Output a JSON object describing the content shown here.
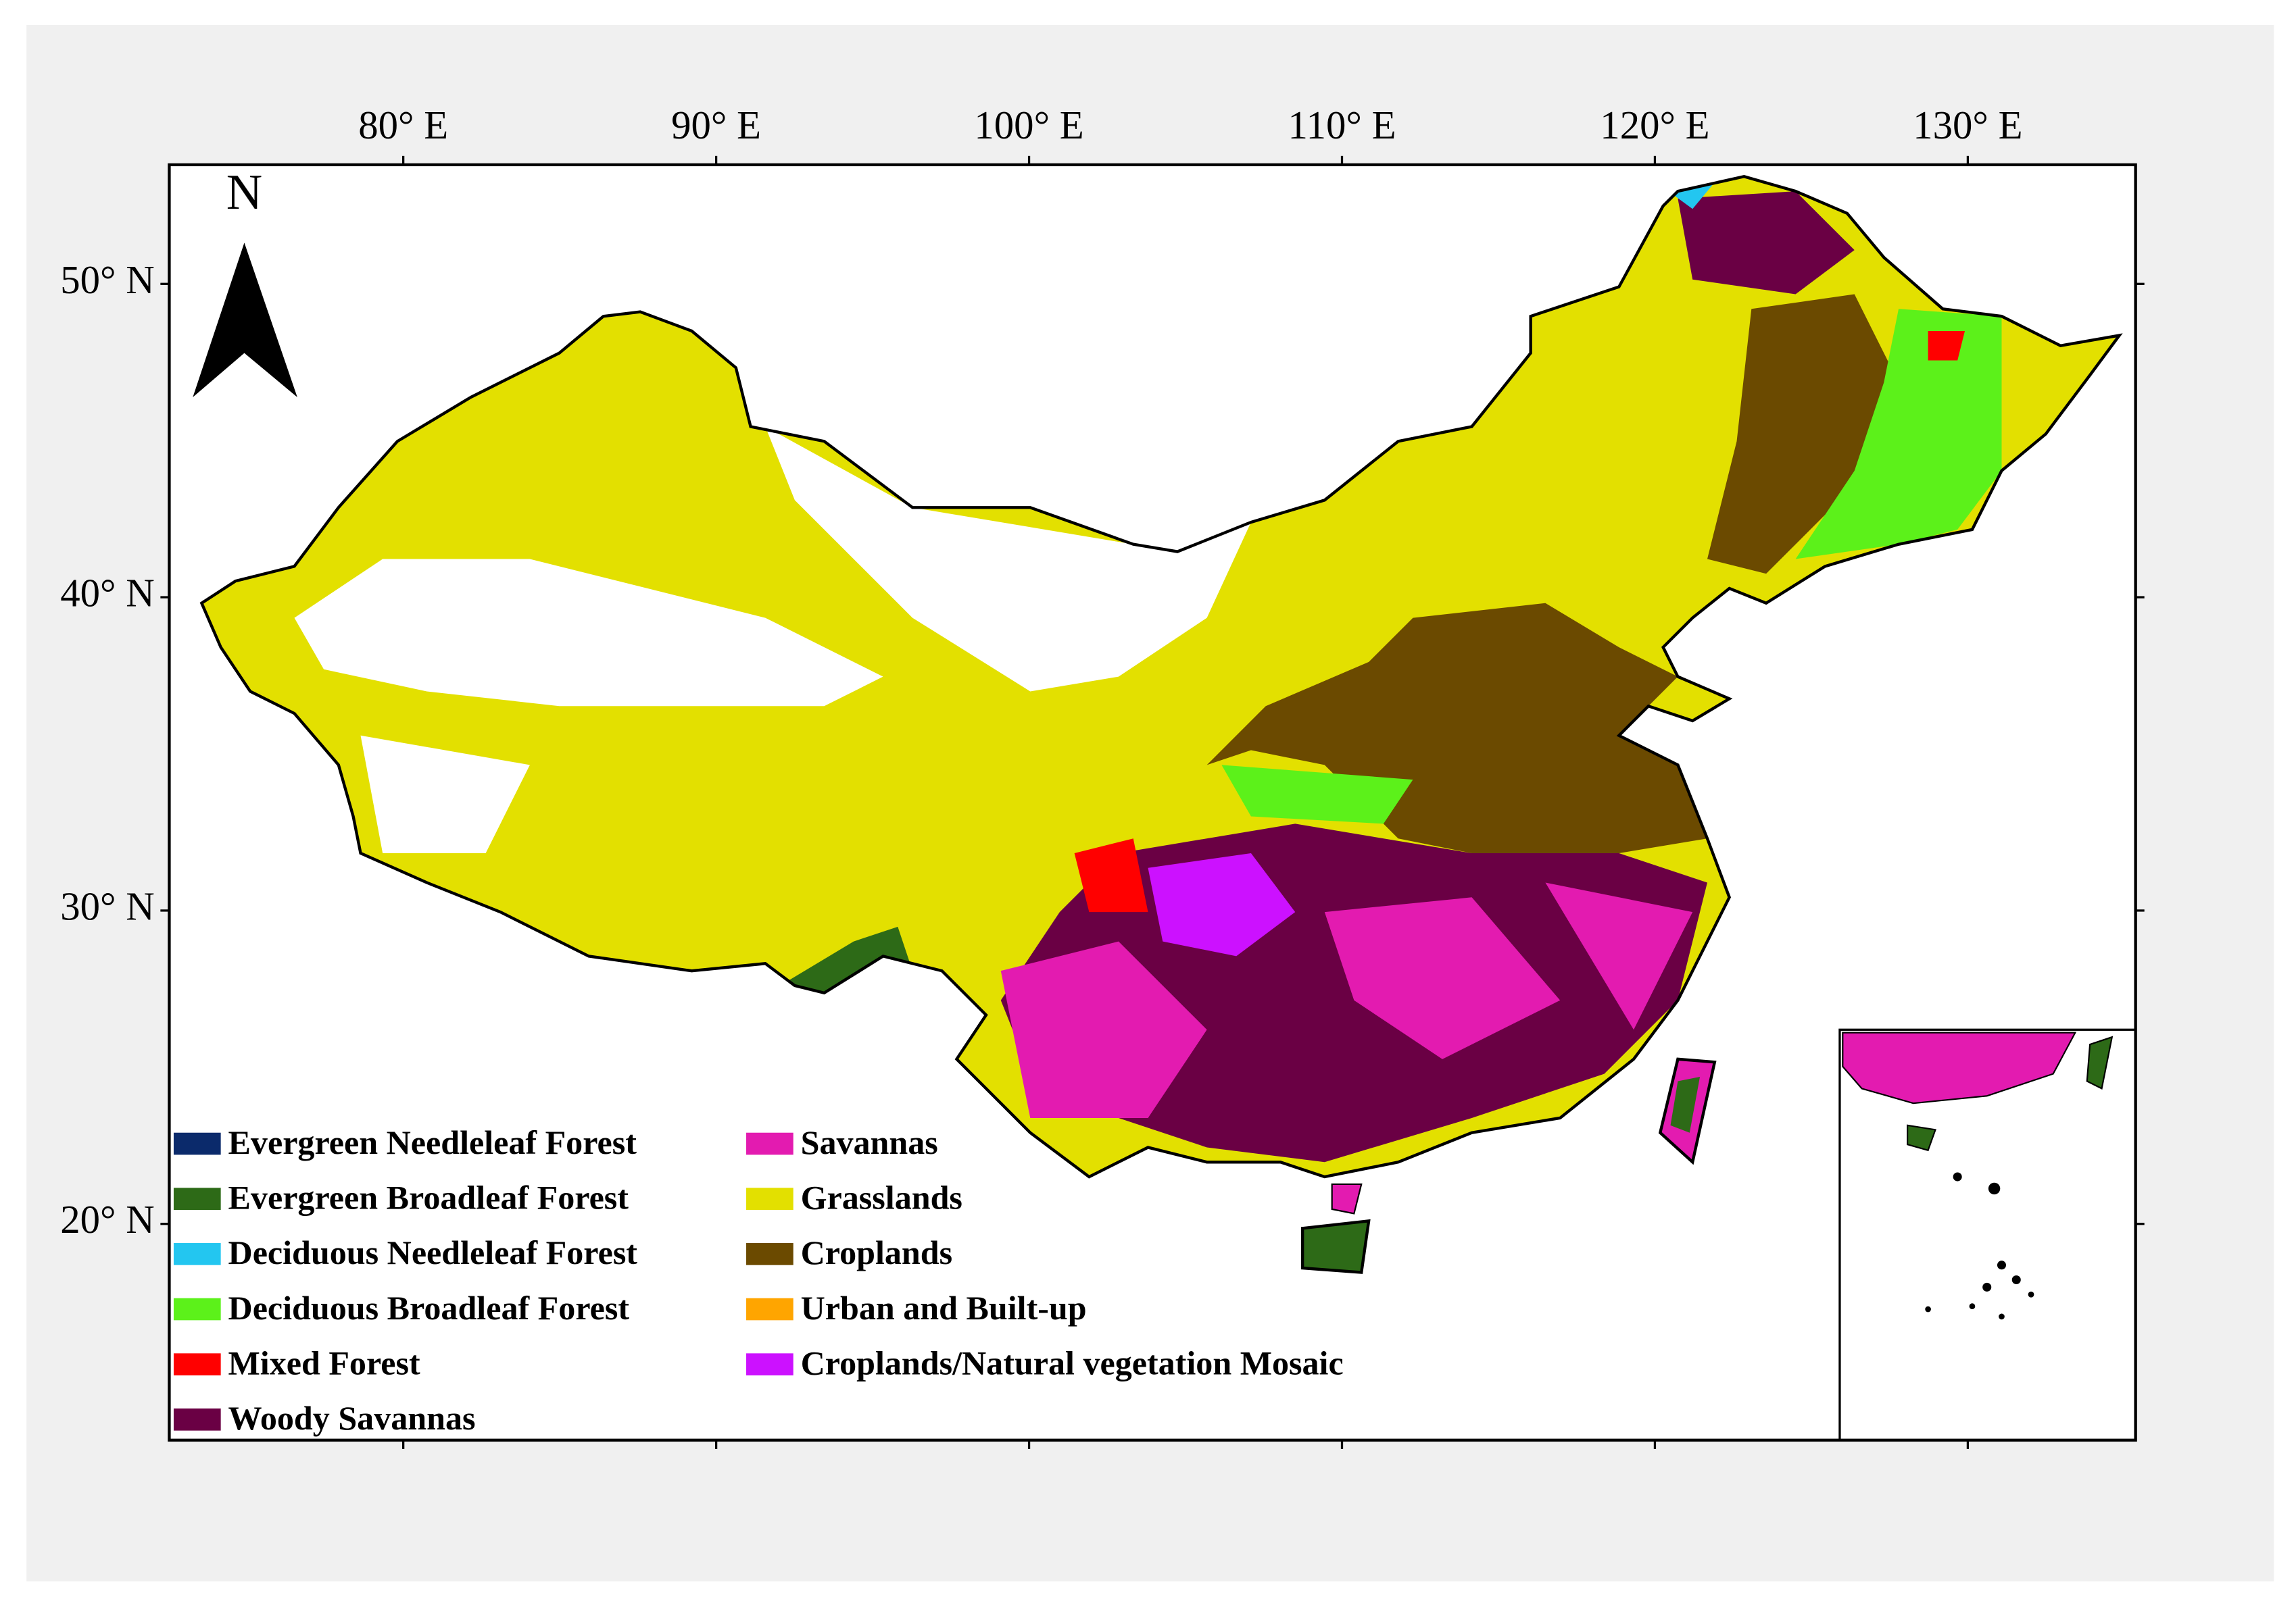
{
  "map": {
    "x_ticks": [
      {
        "value": 80,
        "label": "80° E"
      },
      {
        "value": 90,
        "label": "90° E"
      },
      {
        "value": 100,
        "label": "100° E"
      },
      {
        "value": 110,
        "label": "110° E"
      },
      {
        "value": 120,
        "label": "120° E"
      },
      {
        "value": 130,
        "label": "130° E"
      }
    ],
    "y_ticks": [
      {
        "value": 50,
        "label": "50° N"
      },
      {
        "value": 40,
        "label": "40° N"
      },
      {
        "value": 30,
        "label": "30° N"
      },
      {
        "value": 20,
        "label": "20° N"
      }
    ],
    "north_label": "N",
    "legend": [
      {
        "name": "Evergreen Needleleaf Forest",
        "color": "#0b2a6b"
      },
      {
        "name": "Evergreen Broadleaf Forest",
        "color": "#2d6a17"
      },
      {
        "name": "Deciduous Needleleaf Forest",
        "color": "#23c6f0"
      },
      {
        "name": "Deciduous Broadleaf Forest",
        "color": "#5cf11a"
      },
      {
        "name": "Mixed Forest",
        "color": "#ff0000"
      },
      {
        "name": "Woody Savannas",
        "color": "#6a0044"
      },
      {
        "name": "Savannas",
        "color": "#e31bb0"
      },
      {
        "name": "Grasslands",
        "color": "#e3e000"
      },
      {
        "name": "Croplands",
        "color": "#6b4a00"
      },
      {
        "name": "Urban and Built-up",
        "color": "#ffa500"
      },
      {
        "name": "Croplands/Natural vegetation Mosaic",
        "color": "#cc11ff"
      }
    ]
  }
}
